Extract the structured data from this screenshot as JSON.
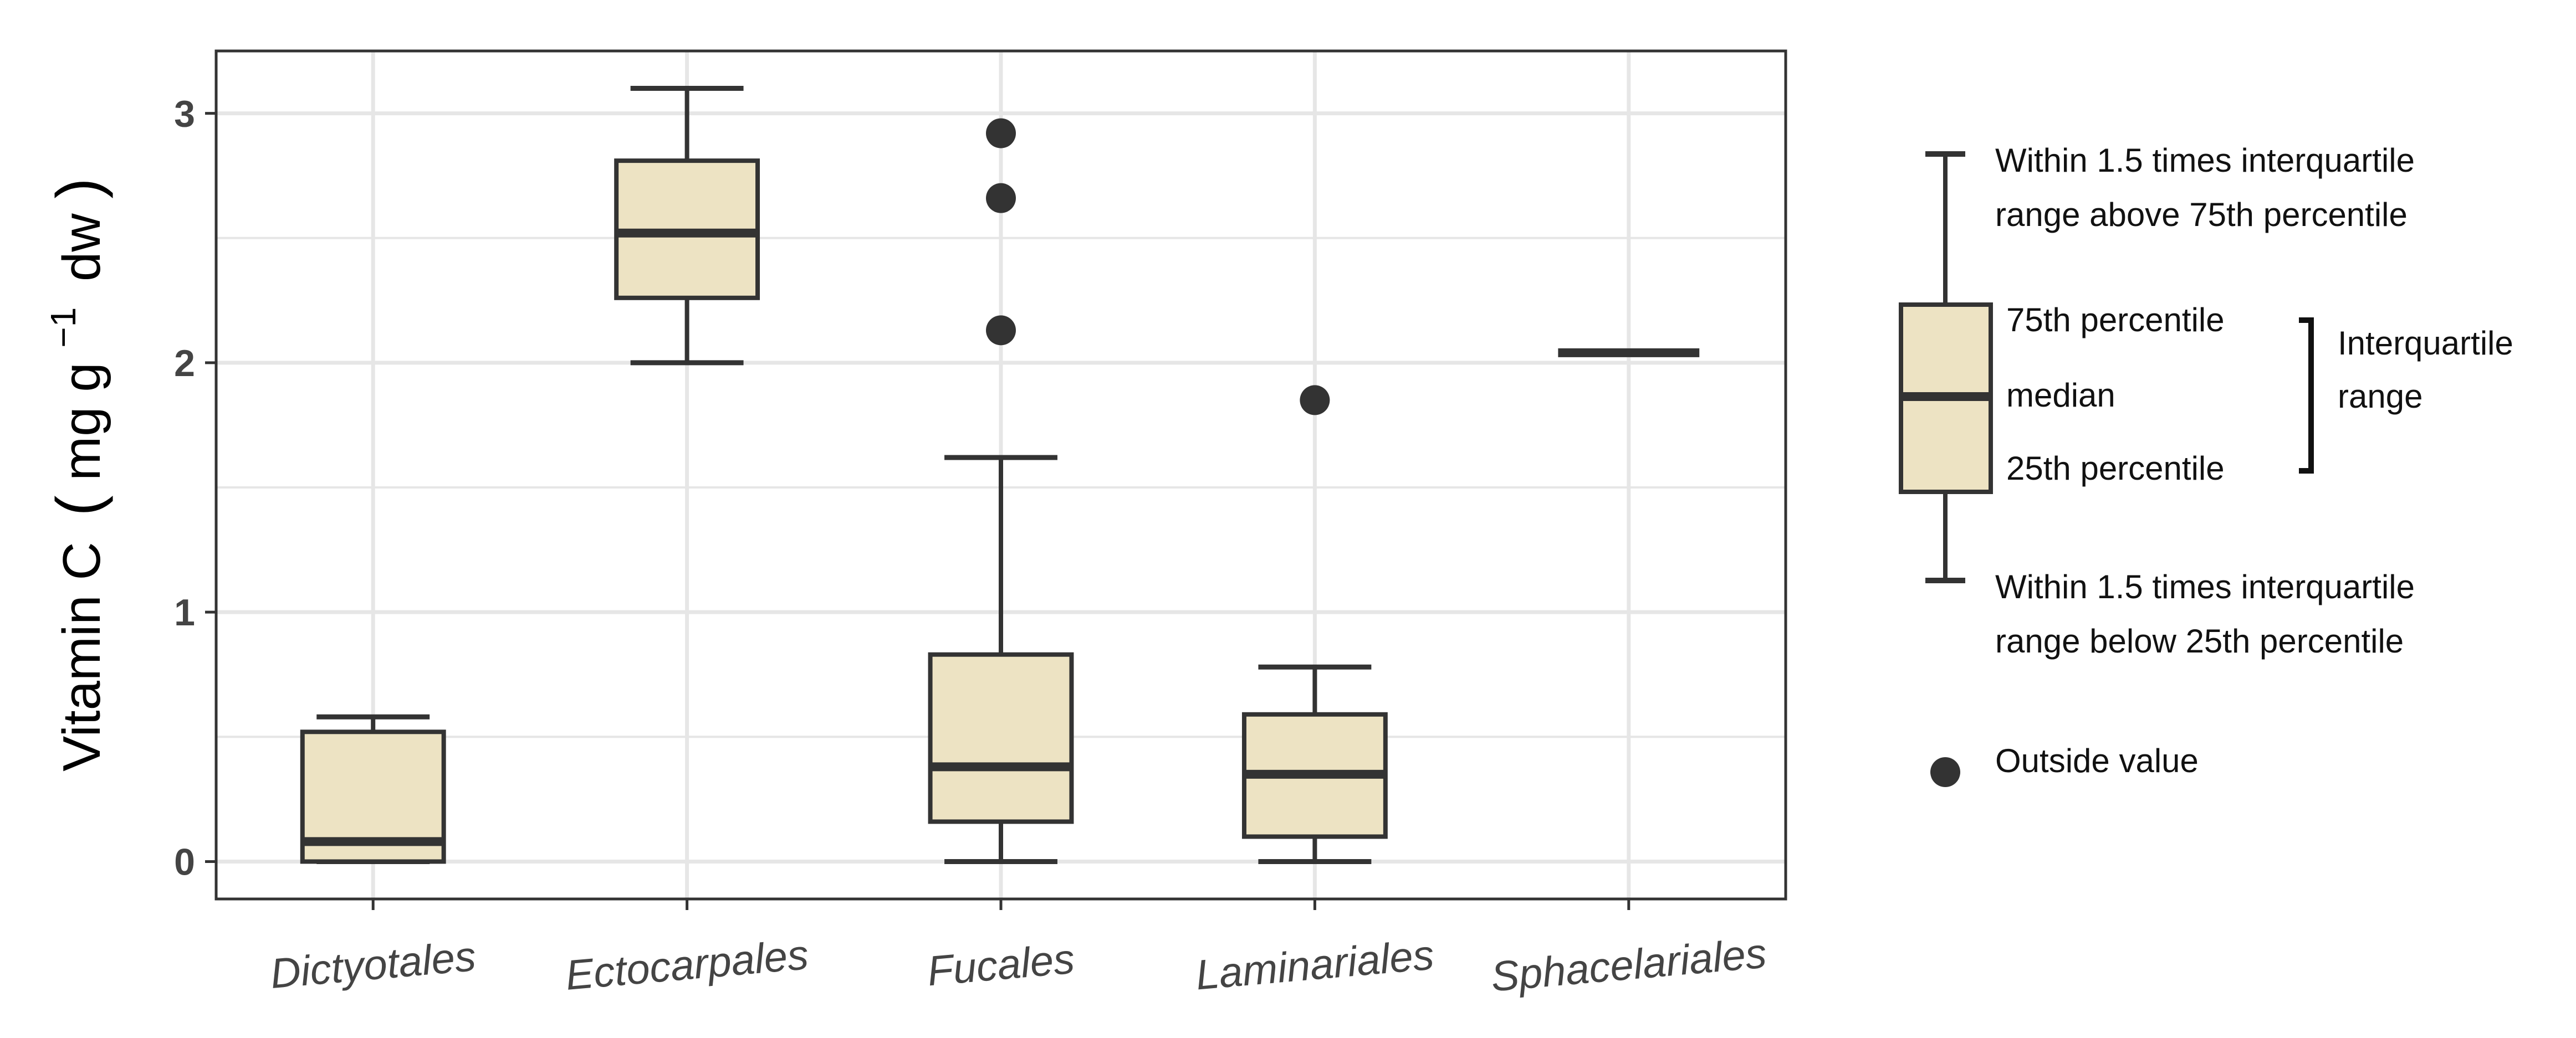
{
  "colors": {
    "box_fill": "#ede3c3",
    "box_stroke": "#333333",
    "grid": "#e6e6e6",
    "panel_border": "#333333",
    "outlier": "#333333",
    "tick_text": "#444444"
  },
  "chart_data": {
    "type": "boxplot",
    "ylabel_main": "Vitamin C",
    "ylabel_unit_prefix": "mg g",
    "ylabel_unit_exponent": "−1",
    "ylabel_unit_suffix": "dw",
    "ylim": [
      -0.15,
      3.25
    ],
    "yticks": [
      0,
      1,
      2,
      3
    ],
    "ytick_labels": [
      "0",
      "1",
      "2",
      "3"
    ],
    "grid": true,
    "categories": [
      "Dictyotales",
      "Ectocarpales",
      "Fucales",
      "Laminariales",
      "Sphacelariales"
    ],
    "boxes": [
      {
        "category": "Dictyotales",
        "whisker_low": 0.0,
        "q1": 0.0,
        "median": 0.08,
        "q3": 0.52,
        "whisker_high": 0.58,
        "outliers": []
      },
      {
        "category": "Ectocarpales",
        "whisker_low": 2.0,
        "q1": 2.26,
        "median": 2.52,
        "q3": 2.81,
        "whisker_high": 3.1,
        "outliers": []
      },
      {
        "category": "Fucales",
        "whisker_low": 0.0,
        "q1": 0.16,
        "median": 0.38,
        "q3": 0.83,
        "whisker_high": 1.62,
        "outliers": [
          2.13,
          2.66,
          2.92
        ]
      },
      {
        "category": "Laminariales",
        "whisker_low": 0.0,
        "q1": 0.1,
        "median": 0.35,
        "q3": 0.59,
        "whisker_high": 0.78,
        "outliers": [
          1.85
        ]
      },
      {
        "category": "Sphacelariales",
        "whisker_low": 2.04,
        "q1": 2.04,
        "median": 2.04,
        "q3": 2.04,
        "whisker_high": 2.04,
        "outliers": []
      }
    ]
  },
  "legend": {
    "upper_whisker_line1": "Within 1.5 times interquartile",
    "upper_whisker_line2": "range above 75th percentile",
    "q3_label": "75th percentile",
    "median_label": "median",
    "q1_label": "25th percentile",
    "iqr_line1": "Interquartile",
    "iqr_line2": "range",
    "lower_whisker_line1": "Within 1.5 times interquartile",
    "lower_whisker_line2": "range below 25th percentile",
    "outlier_label": "Outside value"
  }
}
